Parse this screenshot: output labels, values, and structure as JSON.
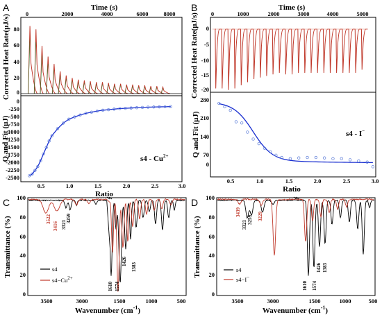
{
  "panels": {
    "A": {
      "label": "A",
      "top": {
        "xlabel": "Time (s)",
        "ylabel": "Corrected Heat Rate(μJ/s)",
        "xticks": [
          "0",
          "2000",
          "4000",
          "6000",
          "8000"
        ],
        "yticks": [
          "80",
          "60",
          "40",
          "20",
          "0"
        ]
      },
      "bottom": {
        "xlabel": "Ratio",
        "ylabel": "Q and Fit (μJ)",
        "annotation": "s4 - Cu",
        "annotation_sup": "2+",
        "xticks": [
          "0.5",
          "1.0",
          "1.5",
          "2.0",
          "2.5",
          "3.0"
        ],
        "yticks": [
          "0",
          "-250",
          "-500",
          "-750",
          "-1000",
          "-1250",
          "-1500",
          "-1750",
          "-2000",
          "-2250",
          "-2500",
          "-2750"
        ]
      }
    },
    "B": {
      "label": "B",
      "top": {
        "xlabel": "Time (s)",
        "ylabel": "Corrected Heat Rate(μJ/s)",
        "xticks": [
          "0",
          "1000",
          "2000",
          "3000",
          "4000",
          "5000"
        ],
        "yticks": [
          "0",
          "-5",
          "-10",
          "-15",
          "-20"
        ]
      },
      "bottom": {
        "xlabel": "Ratio",
        "ylabel": "Q and Fit (μJ)",
        "annotation": "s4 - I",
        "annotation_sup": "−",
        "xticks": [
          "0.5",
          "1.0",
          "1.5",
          "2.0",
          "2.5",
          "3.0"
        ],
        "yticks": [
          "280",
          "210",
          "140",
          "70",
          "0"
        ]
      }
    },
    "C": {
      "label": "C",
      "xlabel": "Wavenumber (cm",
      "xlabel_sup": "-1",
      "xlabel_end": ")",
      "ylabel": "Transmittance (%)",
      "xticks": [
        "3500",
        "3000",
        "1500",
        "1000",
        "500"
      ],
      "yticks": [
        "100",
        "80",
        "60",
        "40",
        "20",
        "0"
      ],
      "legend": [
        "s4",
        "s4−Cu"
      ],
      "legend_sup": "2+",
      "peaks_red": [
        "3522",
        "3416"
      ],
      "peaks_black": [
        "3321",
        "3259",
        "1610",
        "1574",
        "1426",
        "1383"
      ]
    },
    "D": {
      "label": "D",
      "xlabel": "Wavenumber (cm",
      "xlabel_sup": "-1",
      "xlabel_end": ")",
      "ylabel": "Transmittance (%)",
      "xticks": [
        "3500",
        "3000",
        "1500",
        "1000",
        "500"
      ],
      "yticks": [
        "100",
        "80",
        "60",
        "40",
        "20",
        "0"
      ],
      "legend": [
        "s4",
        "s4−I"
      ],
      "legend_sup": "−",
      "peaks_red": [
        "3439",
        "3229"
      ],
      "peaks_black": [
        "3321",
        "3259",
        "1610",
        "1574",
        "1426",
        "1383"
      ]
    }
  },
  "colors": {
    "black": "#000000",
    "red": "#c0392b",
    "fit": "#1a2fd0",
    "green": "#2e7d32"
  },
  "chart_data": [
    {
      "type": "line",
      "title": "",
      "xlabel": "Time (s)",
      "ylabel": "Corrected Heat Rate(μJ/s)",
      "xlim": [
        0,
        8000
      ],
      "ylim": [
        0,
        90
      ],
      "injection_peaks": {
        "times": [
          400,
          700,
          1000,
          1300,
          1600,
          1900,
          2200,
          2500,
          2800,
          3100,
          3400,
          3700,
          4000,
          4300,
          4600,
          4900,
          5200,
          5500,
          5800,
          6100,
          6400,
          6700,
          7000
        ],
        "heights": [
          82,
          78,
          58,
          45,
          36,
          27,
          22,
          19,
          17,
          16,
          15,
          14,
          14,
          13,
          12,
          12,
          11,
          11,
          10,
          10,
          9,
          9,
          8
        ]
      }
    },
    {
      "type": "scatter",
      "xlabel": "Ratio",
      "ylabel": "Q and Fit (μJ)",
      "xlim": [
        0.2,
        3.0
      ],
      "ylim": [
        -2850,
        100
      ],
      "x": [
        0.3,
        0.35,
        0.4,
        0.45,
        0.5,
        0.55,
        0.6,
        0.65,
        0.7,
        0.8,
        0.9,
        1.0,
        1.1,
        1.2,
        1.3,
        1.4,
        1.5,
        1.6,
        1.7,
        1.8,
        1.9,
        2.0,
        2.1,
        2.2,
        2.3,
        2.4,
        2.5,
        2.6,
        2.7,
        2.8
      ],
      "y": [
        -2660,
        -2600,
        -2470,
        -2330,
        -2120,
        -1880,
        -1650,
        -1420,
        -1230,
        -980,
        -780,
        -640,
        -560,
        -490,
        -430,
        -390,
        -350,
        -320,
        -300,
        -280,
        -260,
        -250,
        -240,
        -230,
        -220,
        -210,
        -205,
        -200,
        -195,
        -190
      ]
    },
    {
      "type": "line",
      "xlabel": "Time (s)",
      "ylabel": "Corrected Heat Rate(μJ/s)",
      "xlim": [
        0,
        5200
      ],
      "ylim": [
        -21,
        2
      ],
      "injection_peaks": {
        "times": [
          150,
          350,
          550,
          750,
          950,
          1150,
          1350,
          1550,
          1750,
          1950,
          2150,
          2350,
          2550,
          2750,
          2950,
          3150,
          3350,
          3550,
          3750,
          3950,
          4150,
          4350,
          4550,
          4750
        ],
        "depths": [
          -19,
          -19,
          -19.5,
          -19,
          -18,
          -17,
          -16,
          -15.5,
          -15,
          -14.5,
          -14,
          -14.5,
          -14.5,
          -14,
          -14,
          -14,
          -14,
          -14,
          -14,
          -14,
          -14,
          -14,
          -14,
          -13
        ]
      }
    },
    {
      "type": "scatter",
      "xlabel": "Ratio",
      "ylabel": "Q and Fit (μJ)",
      "xlim": [
        0.1,
        3.0
      ],
      "ylim": [
        -25,
        300
      ],
      "x": [
        0.25,
        0.35,
        0.45,
        0.55,
        0.65,
        0.75,
        0.85,
        0.95,
        1.05,
        1.15,
        1.25,
        1.35,
        1.5,
        1.65,
        1.8,
        1.95,
        2.1,
        2.25,
        2.4,
        2.55,
        2.7,
        2.85,
        2.95
      ],
      "y": [
        265,
        250,
        235,
        185,
        180,
        140,
        110,
        90,
        70,
        55,
        40,
        30,
        25,
        28,
        30,
        30,
        28,
        25,
        25,
        20,
        15,
        10,
        -10
      ]
    },
    {
      "type": "line",
      "xlabel": "Wavenumber (cm-1)",
      "ylabel": "Transmittance (%)",
      "ylim": [
        0,
        100
      ],
      "series": [
        {
          "name": "s4",
          "peaks_x": [
            3321,
            3259,
            1610,
            1574,
            1426,
            1383
          ],
          "peaks_y": [
            88,
            86,
            20,
            10,
            28,
            35
          ]
        },
        {
          "name": "s4−Cu2+",
          "peaks_x": [
            3522,
            3416,
            1574,
            1426
          ],
          "peaks_y": [
            82,
            84,
            4,
            40
          ]
        }
      ]
    },
    {
      "type": "line",
      "xlabel": "Wavenumber (cm-1)",
      "ylabel": "Transmittance (%)",
      "ylim": [
        0,
        100
      ],
      "series": [
        {
          "name": "s4",
          "peaks_x": [
            3321,
            3259,
            1610,
            1574,
            1426,
            1383
          ],
          "peaks_y": [
            80,
            82,
            18,
            22,
            40,
            48
          ]
        },
        {
          "name": "s4−I−",
          "peaks_x": [
            3439,
            3229,
            2960,
            1574
          ],
          "peaks_y": [
            95,
            94,
            42,
            56
          ]
        }
      ]
    }
  ]
}
